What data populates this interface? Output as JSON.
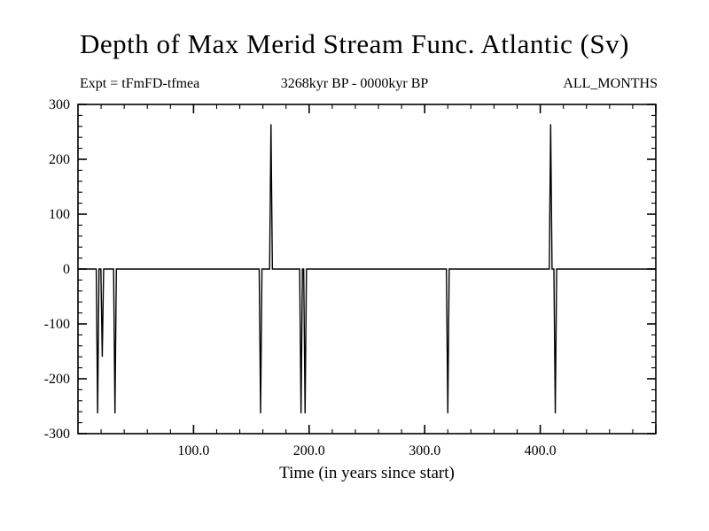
{
  "header": {
    "title": "Depth of Max Merid Stream Func. Atlantic (Sv)",
    "expt_label": "Expt = tFmFD-tfmea",
    "range_label": "3268kyr BP - 0000kyr BP",
    "months_label": "ALL_MONTHS"
  },
  "chart_data": {
    "type": "line",
    "title": "Depth of Max Merid Stream Func. Atlantic (Sv)",
    "xlabel": "Time (in years since start)",
    "ylabel": "",
    "xlim": [
      0,
      500
    ],
    "ylim": [
      -300,
      300
    ],
    "x_major_ticks": [
      100,
      200,
      300,
      400
    ],
    "x_tick_labels": [
      "100.0",
      "200.0",
      "300.0",
      "400.0"
    ],
    "x_minor_step": 20,
    "y_major_ticks": [
      -300,
      -200,
      -100,
      0,
      100,
      200,
      300
    ],
    "y_tick_labels": [
      "-300",
      "-200",
      "-100",
      "0",
      "100",
      "200",
      "300"
    ],
    "y_minor_step": 20,
    "grid": false,
    "legend": "none",
    "line_color": "#000000",
    "baseline_y": 0,
    "spike_half_width": 1.2,
    "spikes": [
      {
        "x": 17,
        "peak": -263
      },
      {
        "x": 21,
        "peak": -160
      },
      {
        "x": 32,
        "peak": -263
      },
      {
        "x": 158,
        "peak": -263
      },
      {
        "x": 167,
        "peak": 264
      },
      {
        "x": 193,
        "peak": -263
      },
      {
        "x": 196.5,
        "peak": -263
      },
      {
        "x": 320,
        "peak": -263
      },
      {
        "x": 409,
        "peak": 264
      },
      {
        "x": 413,
        "peak": -263
      }
    ]
  }
}
